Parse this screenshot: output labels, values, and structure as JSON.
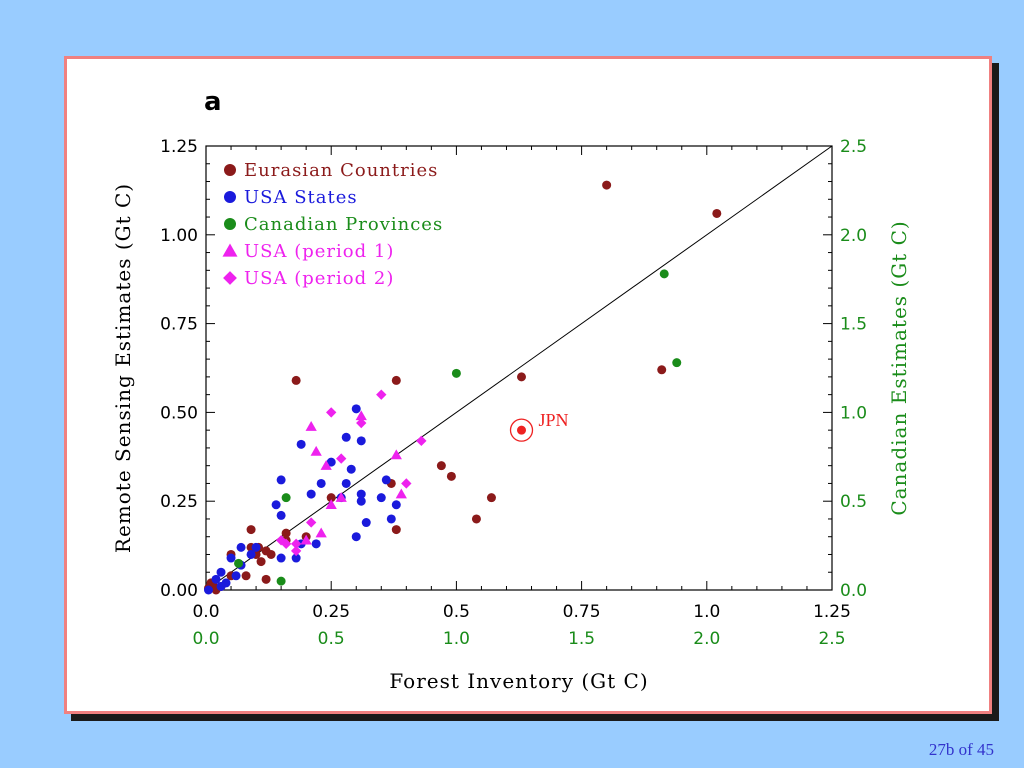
{
  "page": {
    "counter": "27b of 45"
  },
  "colors": {
    "background": "#99ccff",
    "frame_border": "#f08080",
    "eurasian": "#8b1a1a",
    "usa_states": "#1a1adc",
    "canadian": "#1a8c1a",
    "usa_period": "#ee22ee",
    "jpn": "#ee2222",
    "right_axis": "#1a8c1a"
  },
  "chart_data": {
    "type": "scatter",
    "panel_label": "a",
    "xlabel": "Forest Inventory (Gt C)",
    "ylabel": "Remote Sensing Estimates (Gt C)",
    "y2label": "Canadian Estimates (Gt C)",
    "xlim": [
      0,
      1.25
    ],
    "ylim": [
      0,
      1.25
    ],
    "x2lim": [
      0,
      2.5
    ],
    "y2lim": [
      0,
      2.5
    ],
    "x_ticks": [
      "0.0",
      "0.25",
      "0.5",
      "0.75",
      "1.0",
      "1.25"
    ],
    "x2_ticks": [
      "0.0",
      "0.5",
      "1.0",
      "1.5",
      "2.0",
      "2.5"
    ],
    "y_ticks": [
      "0.00",
      "0.25",
      "0.50",
      "0.75",
      "1.00",
      "1.25"
    ],
    "y2_ticks": [
      "0.0",
      "0.5",
      "1.0",
      "1.5",
      "2.0",
      "2.5"
    ],
    "grid": false,
    "legend_position": "top-left",
    "reference_line": "1:1",
    "series": [
      {
        "name": "Eurasian Countries",
        "marker": "circle",
        "color": "#8b1a1a",
        "points": [
          [
            0.005,
            0.005
          ],
          [
            0.01,
            0.02
          ],
          [
            0.015,
            0.01
          ],
          [
            0.02,
            0.0
          ],
          [
            0.03,
            0.01
          ],
          [
            0.05,
            0.04
          ],
          [
            0.05,
            0.1
          ],
          [
            0.08,
            0.04
          ],
          [
            0.09,
            0.12
          ],
          [
            0.09,
            0.17
          ],
          [
            0.1,
            0.1
          ],
          [
            0.105,
            0.12
          ],
          [
            0.11,
            0.08
          ],
          [
            0.12,
            0.11
          ],
          [
            0.12,
            0.03
          ],
          [
            0.13,
            0.1
          ],
          [
            0.16,
            0.16
          ],
          [
            0.16,
            0.14
          ],
          [
            0.18,
            0.59
          ],
          [
            0.2,
            0.15
          ],
          [
            0.25,
            0.26
          ],
          [
            0.37,
            0.3
          ],
          [
            0.38,
            0.17
          ],
          [
            0.38,
            0.59
          ],
          [
            0.47,
            0.35
          ],
          [
            0.49,
            0.32
          ],
          [
            0.54,
            0.2
          ],
          [
            0.57,
            0.26
          ],
          [
            0.63,
            0.6
          ],
          [
            0.8,
            1.14
          ],
          [
            0.91,
            0.62
          ],
          [
            1.02,
            1.06
          ]
        ]
      },
      {
        "name": "USA States",
        "marker": "circle",
        "color": "#1a1adc",
        "points": [
          [
            0.005,
            0.0
          ],
          [
            0.02,
            0.03
          ],
          [
            0.03,
            0.01
          ],
          [
            0.03,
            0.05
          ],
          [
            0.04,
            0.02
          ],
          [
            0.05,
            0.09
          ],
          [
            0.06,
            0.04
          ],
          [
            0.07,
            0.12
          ],
          [
            0.07,
            0.07
          ],
          [
            0.09,
            0.1
          ],
          [
            0.1,
            0.12
          ],
          [
            0.14,
            0.24
          ],
          [
            0.15,
            0.21
          ],
          [
            0.15,
            0.31
          ],
          [
            0.15,
            0.09
          ],
          [
            0.18,
            0.09
          ],
          [
            0.19,
            0.13
          ],
          [
            0.19,
            0.41
          ],
          [
            0.21,
            0.27
          ],
          [
            0.22,
            0.13
          ],
          [
            0.23,
            0.3
          ],
          [
            0.25,
            0.36
          ],
          [
            0.27,
            0.26
          ],
          [
            0.28,
            0.43
          ],
          [
            0.28,
            0.3
          ],
          [
            0.29,
            0.34
          ],
          [
            0.3,
            0.15
          ],
          [
            0.3,
            0.51
          ],
          [
            0.31,
            0.27
          ],
          [
            0.31,
            0.25
          ],
          [
            0.31,
            0.42
          ],
          [
            0.32,
            0.19
          ],
          [
            0.35,
            0.26
          ],
          [
            0.36,
            0.31
          ],
          [
            0.37,
            0.2
          ],
          [
            0.38,
            0.24
          ]
        ]
      },
      {
        "name": "Canadian Provinces",
        "marker": "circle",
        "color": "#1a8c1a",
        "points": [
          [
            0.13,
            0.15
          ],
          [
            0.3,
            0.05
          ],
          [
            0.32,
            0.52
          ],
          [
            1.0,
            1.22
          ],
          [
            1.83,
            1.78
          ],
          [
            1.88,
            1.28
          ]
        ]
      },
      {
        "name": "USA (period 1)",
        "marker": "triangle",
        "color": "#ee22ee",
        "points": [
          [
            0.2,
            0.14
          ],
          [
            0.21,
            0.46
          ],
          [
            0.22,
            0.39
          ],
          [
            0.23,
            0.16
          ],
          [
            0.24,
            0.35
          ],
          [
            0.25,
            0.24
          ],
          [
            0.27,
            0.26
          ],
          [
            0.38,
            0.38
          ],
          [
            0.39,
            0.27
          ],
          [
            0.31,
            0.49
          ]
        ]
      },
      {
        "name": "USA (period 2)",
        "marker": "diamond",
        "color": "#ee22ee",
        "points": [
          [
            0.15,
            0.14
          ],
          [
            0.16,
            0.13
          ],
          [
            0.18,
            0.11
          ],
          [
            0.18,
            0.13
          ],
          [
            0.21,
            0.19
          ],
          [
            0.25,
            0.5
          ],
          [
            0.27,
            0.37
          ],
          [
            0.31,
            0.47
          ],
          [
            0.35,
            0.55
          ],
          [
            0.4,
            0.3
          ],
          [
            0.43,
            0.42
          ]
        ]
      }
    ],
    "annotations": [
      {
        "label": "JPN",
        "x": 0.63,
        "y": 0.45,
        "marker": "circled-dot",
        "color": "#ee2222"
      }
    ]
  }
}
